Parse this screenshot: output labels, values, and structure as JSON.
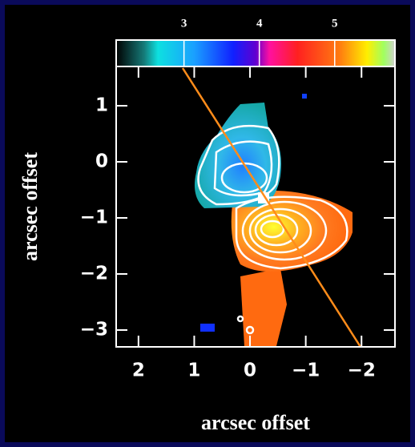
{
  "chart_data": {
    "type": "image",
    "xlabel": "arcsec offset",
    "ylabel": "arcsec offset",
    "xlim": [
      2.4,
      -2.6
    ],
    "xticks": [
      2,
      1,
      0,
      {
        "value": -1,
        "label": "−1"
      },
      {
        "value": -2,
        "label": "−2"
      }
    ],
    "ylim": [
      -3.3,
      1.7
    ],
    "yticks": [
      1,
      0,
      {
        "value": -1,
        "label": "−1"
      },
      {
        "value": -2,
        "label": "−2"
      },
      {
        "value": -3,
        "label": "−3"
      }
    ],
    "colorbar": {
      "lim": [
        2.1,
        5.8
      ],
      "ticks": [
        3,
        4,
        5
      ]
    }
  }
}
